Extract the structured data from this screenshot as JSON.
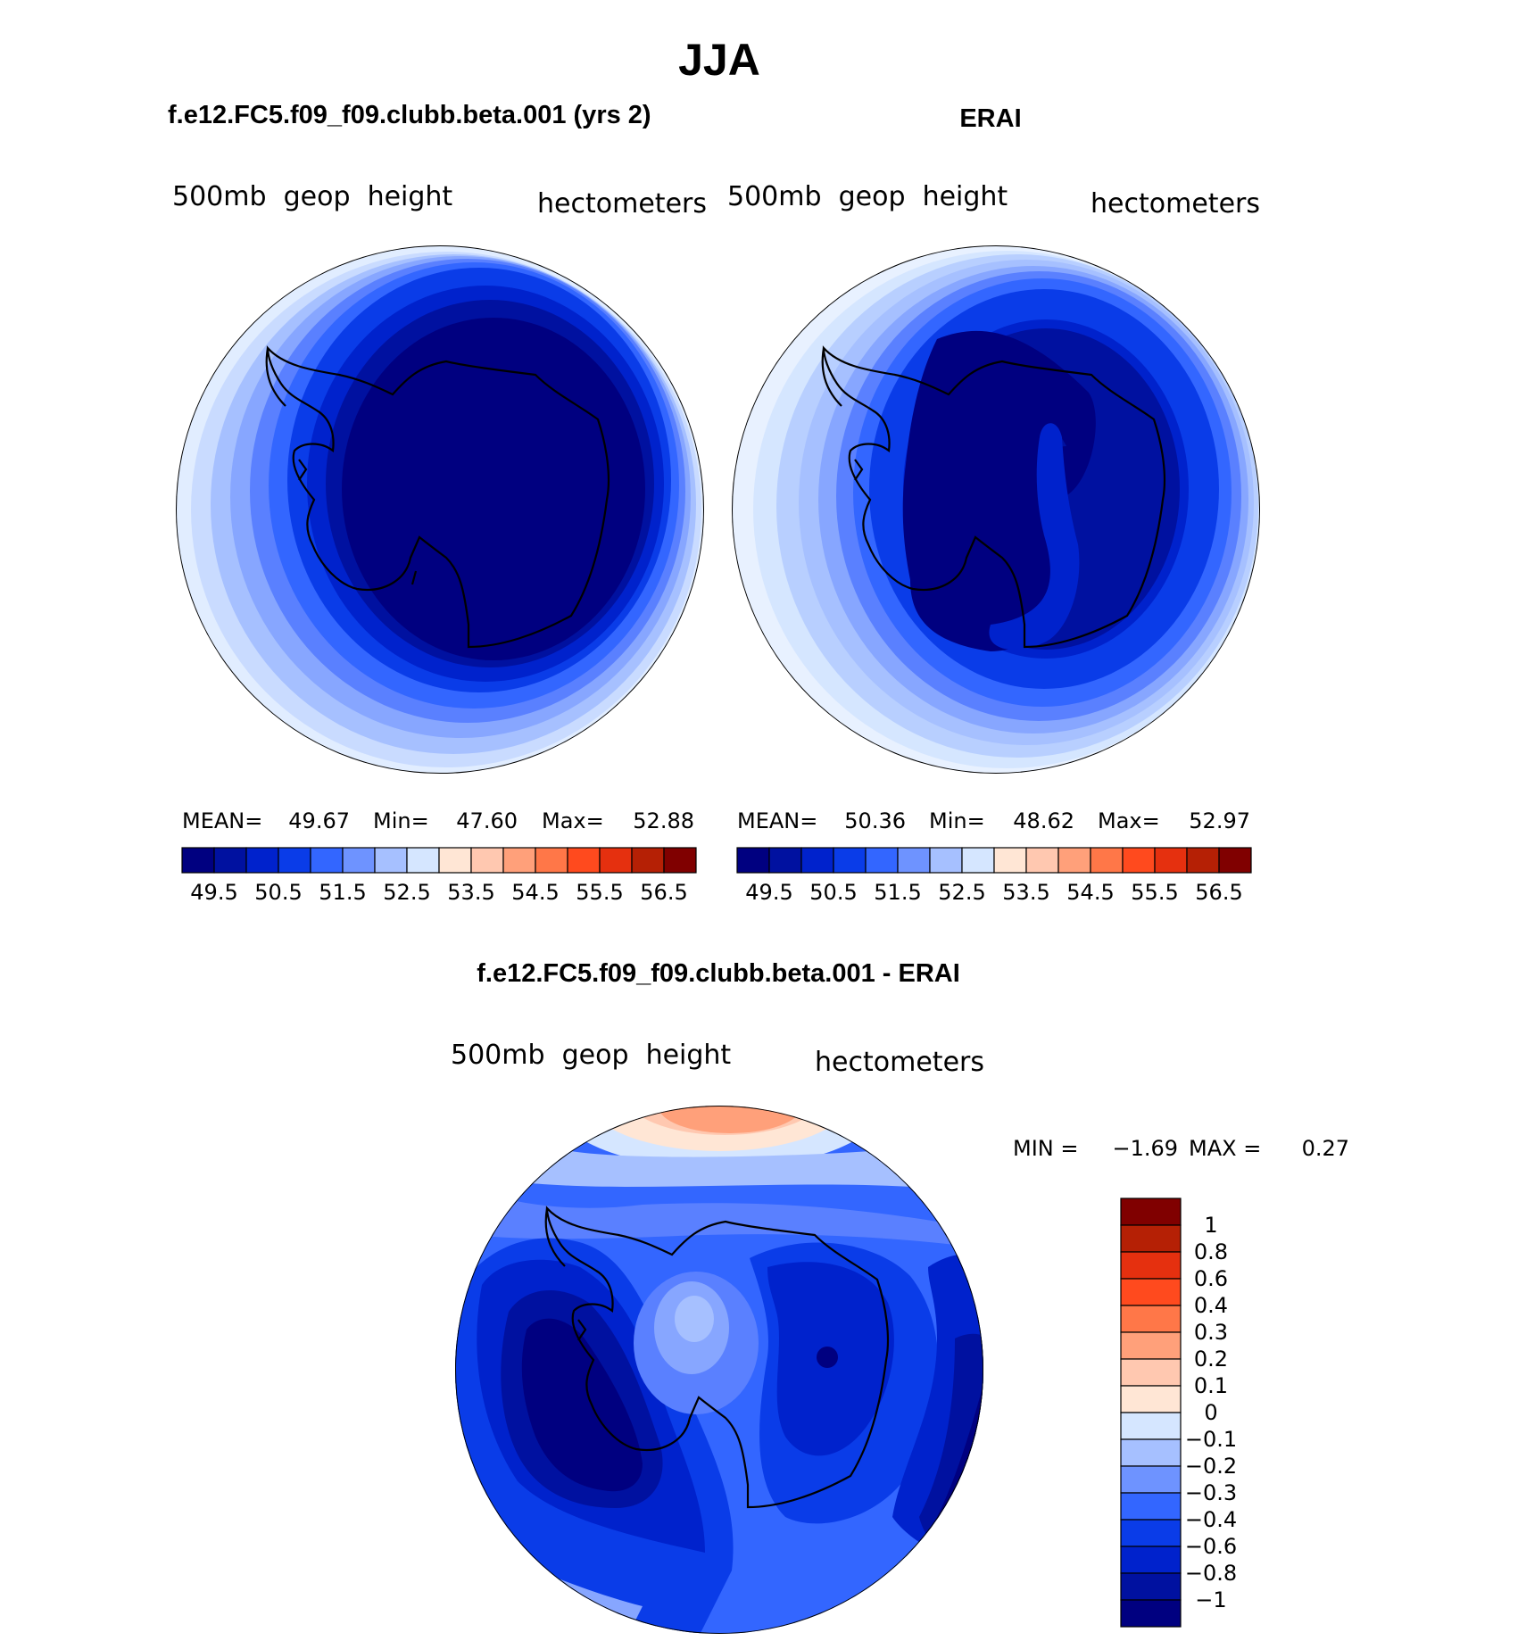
{
  "title": "JJA",
  "palette": {
    "model_bar": [
      "#000080",
      "#0011A0",
      "#0022CC",
      "#0A3CE8",
      "#3366FF",
      "#6E93FF",
      "#A6C0FF",
      "#D5E6FF",
      "#FFE6D5",
      "#FFC8B0",
      "#FFA07A",
      "#FF7748",
      "#FF4A1E",
      "#E5300F",
      "#B52005",
      "#800000"
    ],
    "diff_bar": [
      "#000080",
      "#0011A0",
      "#0022CC",
      "#0A3CE8",
      "#3366FF",
      "#6E93FF",
      "#A6C0FF",
      "#D5E6FF",
      "#FFE6D5",
      "#FFC8B0",
      "#FFA07A",
      "#FF7748",
      "#FF4A1E",
      "#E5300F",
      "#B52005",
      "#800000"
    ]
  },
  "panels": [
    {
      "id": "model",
      "heading": "f.e12.FC5.f09_f09.clubb.beta.001 (yrs 2)",
      "left_label": "500mb  geop  height",
      "right_label": "hectometers",
      "stats": {
        "mean_label": "MEAN=",
        "mean": "49.67",
        "min_label": "Min=",
        "min": "47.60",
        "max_label": "Max=",
        "max": "52.88"
      },
      "tick_labels": [
        "49.5",
        "50.5",
        "51.5",
        "52.5",
        "53.5",
        "54.5",
        "55.5",
        "56.5"
      ]
    },
    {
      "id": "obs",
      "heading": "ERAI",
      "left_label": "500mb  geop  height",
      "right_label": "hectometers",
      "stats": {
        "mean_label": "MEAN=",
        "mean": "50.36",
        "min_label": "Min=",
        "min": "48.62",
        "max_label": "Max=",
        "max": "52.97"
      },
      "tick_labels": [
        "49.5",
        "50.5",
        "51.5",
        "52.5",
        "53.5",
        "54.5",
        "55.5",
        "56.5"
      ]
    }
  ],
  "diff": {
    "heading": "f.e12.FC5.f09_f09.clubb.beta.001 - ERAI",
    "left_label": "500mb  geop  height",
    "right_label": "hectometers",
    "min_label": "MIN =",
    "min": "−1.69",
    "max_label": "MAX =",
    "max": "0.27",
    "tick_labels": [
      "1",
      "0.8",
      "0.6",
      "0.4",
      "0.3",
      "0.2",
      "0.1",
      "0",
      "−0.1",
      "−0.2",
      "−0.3",
      "−0.4",
      "−0.6",
      "−0.8",
      "−1"
    ]
  }
}
